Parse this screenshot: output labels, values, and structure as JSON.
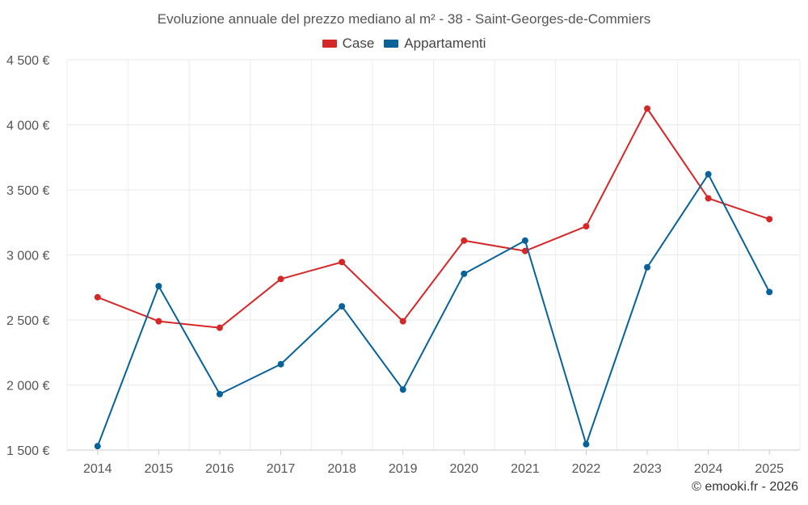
{
  "chart_data": {
    "type": "line",
    "title": "Evoluzione annuale del prezzo mediano al m² - 38 - Saint-Georges-de-Commiers",
    "categories": [
      "2014",
      "2015",
      "2016",
      "2017",
      "2018",
      "2019",
      "2020",
      "2021",
      "2022",
      "2023",
      "2024",
      "2025"
    ],
    "series": [
      {
        "name": "Case",
        "color": "#d62728",
        "values": [
          2675,
          2490,
          2440,
          2815,
          2945,
          2490,
          3110,
          3030,
          3220,
          4125,
          3435,
          3275
        ]
      },
      {
        "name": "Appartamenti",
        "color": "#07629a",
        "values": [
          1530,
          2760,
          1930,
          2160,
          2605,
          1965,
          2855,
          3110,
          1545,
          2905,
          3620,
          2715
        ]
      }
    ],
    "ylim": [
      1500,
      4500
    ],
    "yticks": [
      {
        "value": 1500,
        "label": "1 500 €"
      },
      {
        "value": 2000,
        "label": "2 000 €"
      },
      {
        "value": 2500,
        "label": "2 500 €"
      },
      {
        "value": 3000,
        "label": "3 000 €"
      },
      {
        "value": 3500,
        "label": "3 500 €"
      },
      {
        "value": 4000,
        "label": "4 000 €"
      },
      {
        "value": 4500,
        "label": "4 500 €"
      }
    ],
    "xlabel": "",
    "ylabel": "",
    "grid": true,
    "legend_position": "top-center"
  },
  "credit": "© emooki.fr - 2026"
}
